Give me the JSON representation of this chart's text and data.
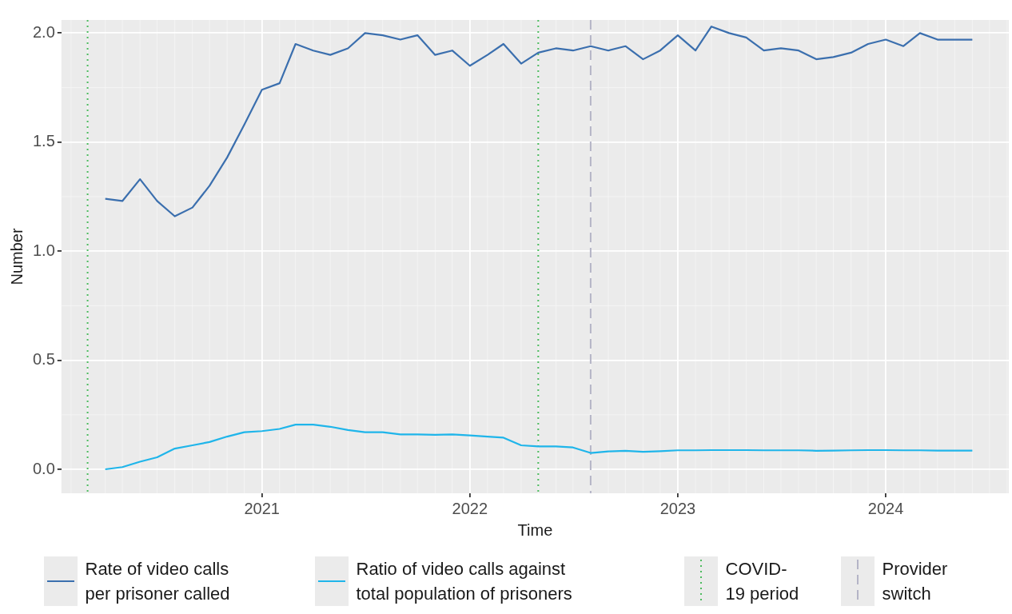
{
  "chart_data": {
    "type": "line",
    "xlabel": "Time",
    "ylabel": "Number",
    "x": [
      "2020-04",
      "2020-05",
      "2020-06",
      "2020-07",
      "2020-08",
      "2020-09",
      "2020-10",
      "2020-11",
      "2020-12",
      "2021-01",
      "2021-02",
      "2021-03",
      "2021-04",
      "2021-05",
      "2021-06",
      "2021-07",
      "2021-08",
      "2021-09",
      "2021-10",
      "2021-11",
      "2021-12",
      "2022-01",
      "2022-02",
      "2022-03",
      "2022-04",
      "2022-05",
      "2022-06",
      "2022-07",
      "2022-08",
      "2022-09",
      "2022-10",
      "2022-11",
      "2022-12",
      "2023-01",
      "2023-02",
      "2023-03",
      "2023-04",
      "2023-05",
      "2023-06",
      "2023-07",
      "2023-08",
      "2023-09",
      "2023-10",
      "2023-11",
      "2023-12",
      "2024-01",
      "2024-02",
      "2024-03",
      "2024-04",
      "2024-05",
      "2024-06"
    ],
    "series": [
      {
        "name": "Rate of video calls per prisoner called",
        "color": "#3b6fae",
        "values": [
          1.24,
          1.23,
          1.33,
          1.23,
          1.16,
          1.2,
          1.3,
          1.43,
          1.58,
          1.74,
          1.77,
          1.95,
          1.92,
          1.9,
          1.93,
          2.0,
          1.99,
          1.97,
          1.99,
          1.9,
          1.92,
          1.85,
          1.9,
          1.95,
          1.86,
          1.91,
          1.93,
          1.92,
          1.94,
          1.92,
          1.94,
          1.88,
          1.92,
          1.99,
          1.92,
          2.03,
          2.0,
          1.98,
          1.92,
          1.93,
          1.92,
          1.88,
          1.89,
          1.91,
          1.95,
          1.97,
          1.94,
          2.0,
          1.97,
          1.97,
          1.97
        ]
      },
      {
        "name": "Ratio of video calls against total population of prisoners",
        "color": "#1fb5ea",
        "values": [
          0.0,
          0.01,
          0.035,
          0.055,
          0.095,
          0.11,
          0.125,
          0.15,
          0.17,
          0.175,
          0.185,
          0.205,
          0.205,
          0.195,
          0.18,
          0.17,
          0.17,
          0.16,
          0.16,
          0.158,
          0.16,
          0.155,
          0.15,
          0.145,
          0.11,
          0.105,
          0.105,
          0.1,
          0.075,
          0.082,
          0.085,
          0.08,
          0.083,
          0.087,
          0.087,
          0.088,
          0.088,
          0.088,
          0.087,
          0.087,
          0.087,
          0.085,
          0.086,
          0.087,
          0.088,
          0.088,
          0.087,
          0.087,
          0.086,
          0.086,
          0.086
        ]
      }
    ],
    "xlim": [
      "2020-01-15",
      "2024-08-04"
    ],
    "xticks": [
      "2021",
      "2022",
      "2023",
      "2024"
    ],
    "ylim": [
      -0.11,
      2.06
    ],
    "yticks": [
      {
        "value": 0,
        "label": "0.0"
      },
      {
        "value": 0.5,
        "label": "0.5"
      },
      {
        "value": 1,
        "label": "1.0"
      },
      {
        "value": 1.5,
        "label": "1.5"
      },
      {
        "value": 2,
        "label": "2.0"
      }
    ],
    "ref_lines": [
      {
        "axis": "x",
        "value": "2020-03",
        "label": "COVID-19 period",
        "color": "#4dbb5f",
        "line_style": "dotted"
      },
      {
        "axis": "x",
        "value": "2022-05",
        "color": "#4dbb5f",
        "line_style": "dotted"
      },
      {
        "axis": "x",
        "value": "2022-08",
        "label": "Provider switch",
        "color": "#b4b4c6",
        "line_style": "dashed"
      }
    ],
    "grid": true,
    "legend": "bottom",
    "line_style": "solid",
    "marker": "none"
  }
}
